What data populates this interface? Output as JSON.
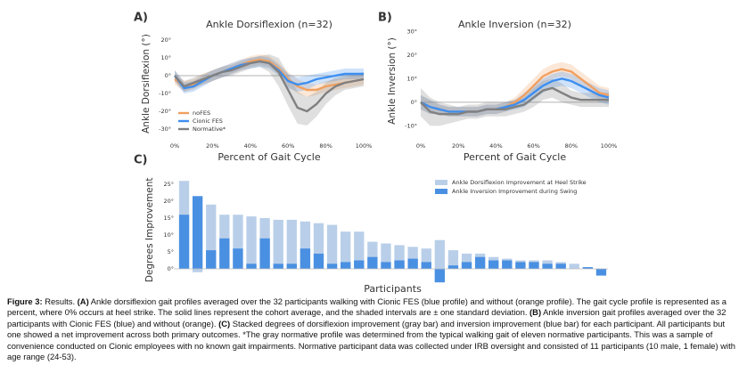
{
  "chart_data": [
    {
      "type": "line",
      "panel": "A)",
      "title": "Ankle Dorsiflexion (n=32)",
      "xlabel": "Percent of Gait Cycle",
      "ylabel": "Ankle Dorsiflexion (°)",
      "x": [
        0,
        5,
        10,
        15,
        20,
        25,
        30,
        35,
        40,
        45,
        50,
        55,
        60,
        65,
        70,
        75,
        80,
        85,
        90,
        95,
        100
      ],
      "xlim": [
        0,
        100
      ],
      "xticks": [
        {
          "value": 0,
          "label": "0%"
        },
        {
          "value": 20,
          "label": "20%"
        },
        {
          "value": 40,
          "label": "40%"
        },
        {
          "value": 60,
          "label": "60%"
        },
        {
          "value": 80,
          "label": "80%"
        },
        {
          "value": 100,
          "label": "100%"
        }
      ],
      "ylim": [
        -35,
        26
      ],
      "yticks": [
        {
          "value": -30,
          "label": "-30°"
        },
        {
          "value": -20,
          "label": "-20°"
        },
        {
          "value": -10,
          "label": "-10°"
        },
        {
          "value": 0,
          "label": "0°"
        },
        {
          "value": 10,
          "label": "10°"
        },
        {
          "value": 20,
          "label": "20°"
        }
      ],
      "series": [
        {
          "name": "noFES",
          "color": "#f0a060",
          "values": [
            -2,
            -6,
            -5,
            -2,
            0,
            2,
            4,
            6,
            8,
            9,
            8,
            4,
            -2,
            -6,
            -8,
            -8,
            -6,
            -5,
            -4,
            -3,
            -2
          ],
          "std": [
            3,
            3,
            3,
            3,
            3,
            3,
            3,
            3,
            3,
            3,
            3,
            3,
            4,
            4,
            4,
            3,
            3,
            3,
            3,
            3,
            3
          ]
        },
        {
          "name": "Cionic FES",
          "color": "#3d8ef0",
          "values": [
            0,
            -7,
            -6,
            -3,
            0,
            2,
            4,
            6,
            7,
            8,
            7,
            3,
            -3,
            -5,
            -4,
            -2,
            -1,
            0,
            1,
            1,
            1
          ],
          "std": [
            3,
            3,
            3,
            3,
            3,
            3,
            3,
            3,
            3,
            3,
            3,
            3,
            4,
            4,
            4,
            3,
            3,
            3,
            3,
            3,
            3
          ]
        },
        {
          "name": "Normative*",
          "color": "#808080",
          "values": [
            0,
            -6,
            -4,
            -2,
            0,
            2,
            3,
            5,
            7,
            8,
            7,
            2,
            -8,
            -18,
            -20,
            -16,
            -10,
            -6,
            -4,
            -3,
            -2
          ],
          "std": [
            3,
            3,
            3,
            3,
            3,
            3,
            3,
            3,
            3,
            3,
            5,
            8,
            9,
            9,
            8,
            7,
            6,
            5,
            4,
            4,
            4
          ]
        }
      ],
      "legend": "lower left"
    },
    {
      "type": "line",
      "panel": "B)",
      "title": "Ankle Inversion (n=32)",
      "xlabel": "Percent of Gait Cycle",
      "ylabel": "Ankle Inversion (°)",
      "x": [
        0,
        5,
        10,
        15,
        20,
        25,
        30,
        35,
        40,
        45,
        50,
        55,
        60,
        65,
        70,
        75,
        80,
        85,
        90,
        95,
        100
      ],
      "xlim": [
        0,
        100
      ],
      "xticks": [
        {
          "value": 0,
          "label": "0%"
        },
        {
          "value": 20,
          "label": "20%"
        },
        {
          "value": 40,
          "label": "40%"
        },
        {
          "value": 60,
          "label": "60%"
        },
        {
          "value": 80,
          "label": "80%"
        },
        {
          "value": 100,
          "label": "100%"
        }
      ],
      "ylim": [
        -14,
        32
      ],
      "yticks": [
        {
          "value": -10,
          "label": "-10°"
        },
        {
          "value": 0,
          "label": "0°"
        },
        {
          "value": 10,
          "label": "10°"
        },
        {
          "value": 20,
          "label": "20°"
        },
        {
          "value": 30,
          "label": "30°"
        }
      ],
      "series": [
        {
          "color": "#f0a060",
          "values": [
            0,
            -2,
            -3,
            -4,
            -4,
            -4,
            -4,
            -3,
            -3,
            -2,
            0,
            3,
            7,
            11,
            13,
            14,
            13,
            10,
            7,
            4,
            3
          ],
          "std": [
            3,
            3,
            2,
            2,
            2,
            2,
            2,
            2,
            2,
            2,
            2,
            3,
            3,
            3,
            3,
            3,
            3,
            3,
            3,
            3,
            3
          ]
        },
        {
          "color": "#3d8ef0",
          "values": [
            0,
            -2,
            -3,
            -4,
            -4,
            -4,
            -4,
            -3,
            -3,
            -2,
            -1,
            1,
            4,
            7,
            9,
            10,
            9,
            7,
            5,
            3,
            2
          ],
          "std": [
            3,
            3,
            2,
            2,
            2,
            2,
            2,
            2,
            2,
            2,
            2,
            3,
            3,
            3,
            3,
            3,
            3,
            3,
            3,
            3,
            3
          ]
        },
        {
          "color": "#808080",
          "values": [
            0,
            -4,
            -5,
            -5,
            -5,
            -4,
            -4,
            -3,
            -3,
            -3,
            -2,
            -1,
            2,
            5,
            6,
            4,
            2,
            1,
            1,
            1,
            1
          ],
          "std": [
            6,
            6,
            5,
            4,
            3,
            3,
            3,
            3,
            3,
            3,
            3,
            3,
            4,
            4,
            4,
            4,
            3,
            3,
            3,
            3,
            3
          ]
        }
      ]
    },
    {
      "type": "bar",
      "panel": "C)",
      "xlabel": "Participants",
      "ylabel": "Degrees Improvement",
      "categories": [
        null,
        null,
        null,
        null,
        null,
        null,
        null,
        null,
        null,
        null,
        null,
        null,
        null,
        null,
        null,
        null,
        null,
        null,
        null,
        null,
        null,
        null,
        null,
        null,
        null,
        null,
        null,
        null,
        null,
        null,
        null,
        null
      ],
      "ylim": [
        -5,
        28
      ],
      "yticks": [
        {
          "value": 0,
          "label": "0°"
        },
        {
          "value": 5,
          "label": "5°"
        },
        {
          "value": 10,
          "label": "10°"
        },
        {
          "value": 15,
          "label": "15°"
        },
        {
          "value": 20,
          "label": "20°"
        },
        {
          "value": 25,
          "label": "25°"
        }
      ],
      "series": [
        {
          "name": "Ankle Dorsiflexion Improvement at Heel Strike",
          "color": "#b9cfe9",
          "values": [
            26,
            -1,
            19,
            16,
            16,
            15.5,
            15,
            14.5,
            14.5,
            14,
            13.5,
            13,
            11,
            11,
            8,
            7.5,
            7,
            6.5,
            6,
            8.5,
            5.5,
            4.5,
            4.5,
            3.5,
            3,
            2.5,
            2.5,
            2.5,
            2,
            1.5,
            0.5,
            0
          ]
        },
        {
          "name": "Ankle Inversion Improvement during Swing",
          "color": "#4a90e2",
          "values": [
            16,
            21.5,
            5.5,
            9,
            6,
            1.5,
            9,
            1.5,
            1.5,
            6,
            4.5,
            1.5,
            2,
            2.5,
            3.5,
            2,
            2.5,
            3,
            2,
            -4,
            1,
            2,
            3.5,
            2.5,
            2.5,
            2,
            2,
            1.5,
            1.5,
            0,
            0.5,
            -2
          ]
        }
      ],
      "legend": "upper right"
    }
  ],
  "caption": [
    {
      "text": "Figure 3:",
      "bold": true
    },
    {
      "text": " Results. "
    },
    {
      "text": "(A)",
      "bold": true
    },
    {
      "text": " Ankle dorsiflexion gait profiles averaged over the 32 participants walking with Cionic FES (blue profile) and without (orange profile). The gait cycle profile is represented as a percent, where 0% occurs at heel strike. The solid lines represent the cohort average, and the shaded intervals are ± one standard deviation. "
    },
    {
      "text": "(B)",
      "bold": true
    },
    {
      "text": " Ankle inversion gait profiles averaged over the 32 participants with Cionic FES (blue) and without (orange). "
    },
    {
      "text": "(C)",
      "bold": true
    },
    {
      "text": " Stacked degrees of dorsiflexion improvement (gray bar) and inversion improvement (blue bar) for each participant. All participants but one showed a net improvement across both primary outcomes. *The gray normative profile was determined from the typical walking gait of eleven normative participants. This was a sample of convenience conducted on Cionic employees with no known gait impairments. Normative participant data was collected under IRB oversight and consisted of 11 participants (10 male, 1 female) with age range (24-53)."
    }
  ]
}
